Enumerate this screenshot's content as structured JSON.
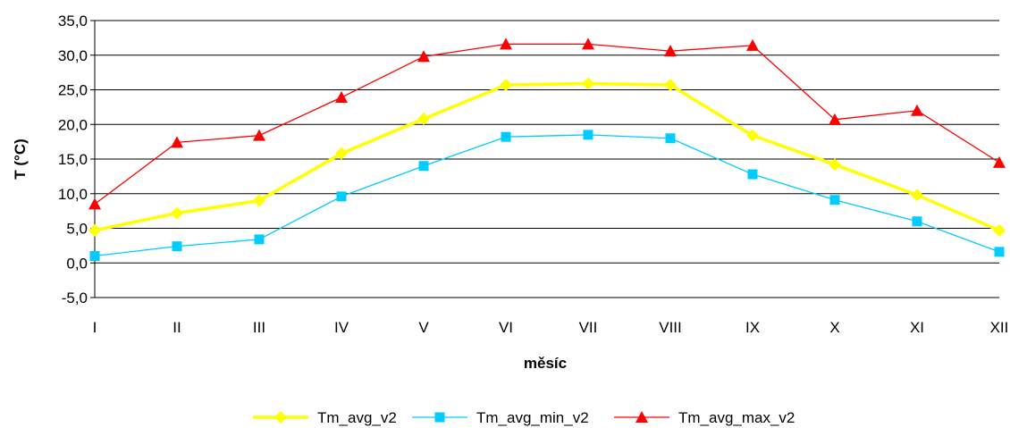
{
  "chart_data": {
    "type": "line",
    "title": "",
    "xlabel": "měsíc",
    "ylabel": "T (°C)",
    "categories": [
      "I",
      "II",
      "III",
      "IV",
      "V",
      "VI",
      "VII",
      "VIII",
      "IX",
      "X",
      "XI",
      "XII"
    ],
    "ylim": [
      -5,
      35
    ],
    "yticks": [
      -5,
      0,
      5,
      10,
      15,
      20,
      25,
      30,
      35
    ],
    "ytick_labels": [
      "-5,0",
      "0,0",
      "5,0",
      "10,0",
      "15,0",
      "20,0",
      "25,0",
      "30,0",
      "35,0"
    ],
    "grid": "horizontal",
    "legend_position": "bottom",
    "series": [
      {
        "name": "Tm_avg_v2",
        "color": "#FFFF00",
        "marker": "diamond",
        "values": [
          4.7,
          7.2,
          9.0,
          15.8,
          20.8,
          25.7,
          25.9,
          25.7,
          18.4,
          14.2,
          9.8,
          4.7
        ]
      },
      {
        "name": "Tm_avg_min_v2",
        "color": "#00CCFF",
        "marker": "square",
        "values": [
          1.0,
          2.4,
          3.4,
          9.6,
          14.0,
          18.2,
          18.5,
          18.0,
          12.8,
          9.1,
          6.0,
          1.6
        ]
      },
      {
        "name": "Tm_avg_max_v2",
        "color": "#FF0000",
        "marker": "triangle",
        "values": [
          8.5,
          17.4,
          18.4,
          23.9,
          29.8,
          31.6,
          31.6,
          30.6,
          31.4,
          20.7,
          22.0,
          14.5
        ]
      }
    ]
  }
}
